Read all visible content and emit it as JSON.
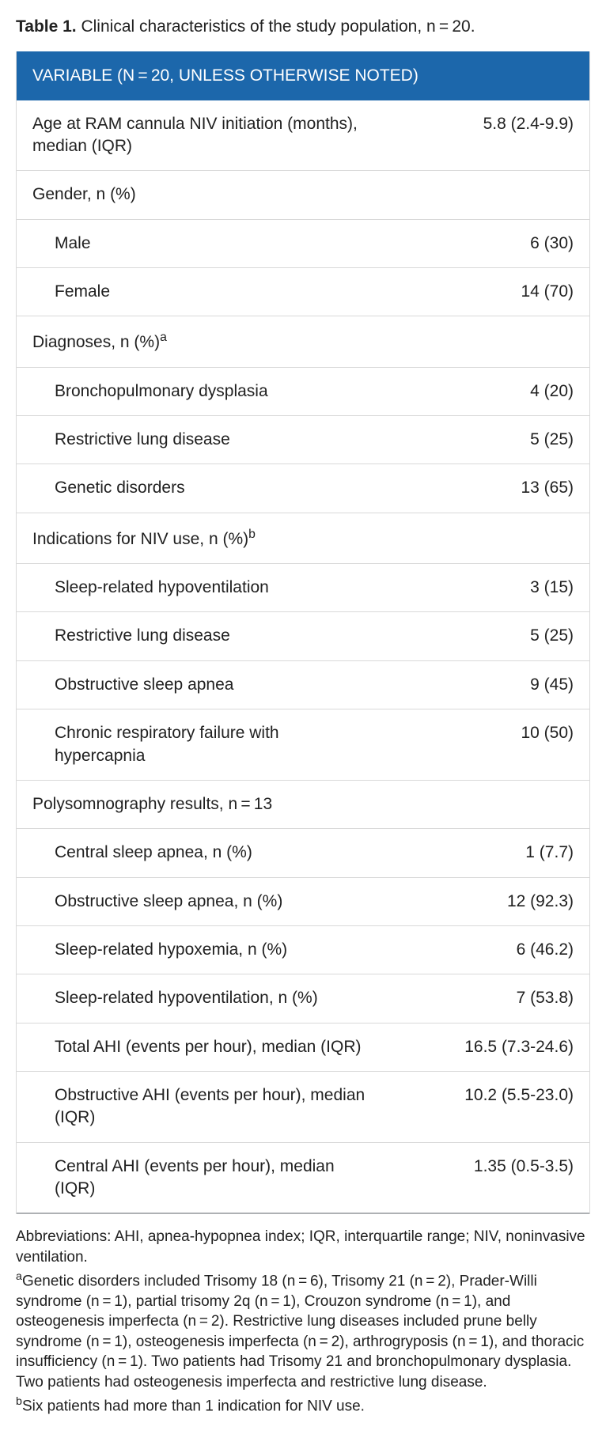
{
  "caption_label": "Table 1.",
  "caption_text": " Clinical characteristics of the study population, n = 20.",
  "header_text": "VARIABLE (N = 20, UNLESS OTHERWISE NOTED)",
  "colors": {
    "header_bg": "#1c67ab",
    "header_text": "#ffffff",
    "row_border": "#d9d9d9",
    "bottom_border": "#aeb1b4",
    "body_text": "#212121"
  },
  "columns": [
    "label",
    "value"
  ],
  "col_widths": [
    "65%",
    "35%"
  ],
  "font_family": "Arial, Helvetica, sans-serif",
  "font_size_caption_pt": 16,
  "font_size_table_pt": 16,
  "font_size_footnote_pt": 14,
  "rows": [
    {
      "label": "Age at RAM cannula NIV initiation (months), median (IQR)",
      "value": "5.8 (2.4-9.9)",
      "indent": false
    },
    {
      "label": "Gender, n (%)",
      "value": "",
      "indent": false
    },
    {
      "label": "Male",
      "value": "6 (30)",
      "indent": true
    },
    {
      "label": "Female",
      "value": "14 (70)",
      "indent": true
    },
    {
      "label": "Diagnoses, n (%)",
      "sup": "a",
      "value": "",
      "indent": false
    },
    {
      "label": "Bronchopulmonary dysplasia",
      "value": "4 (20)",
      "indent": true
    },
    {
      "label": "Restrictive lung disease",
      "value": "5 (25)",
      "indent": true
    },
    {
      "label": "Genetic disorders",
      "value": "13 (65)",
      "indent": true
    },
    {
      "label": "Indications for NIV use, n (%)",
      "sup": "b",
      "value": "",
      "indent": false
    },
    {
      "label": "Sleep-related hypoventilation",
      "value": "3 (15)",
      "indent": true
    },
    {
      "label": "Restrictive lung disease",
      "value": "5 (25)",
      "indent": true
    },
    {
      "label": "Obstructive sleep apnea",
      "value": "9 (45)",
      "indent": true
    },
    {
      "label": "Chronic respiratory failure with hypercapnia",
      "value": "10 (50)",
      "indent": true
    },
    {
      "label": "Polysomnography results, n = 13",
      "value": "",
      "indent": false
    },
    {
      "label": "Central sleep apnea, n (%)",
      "value": "1 (7.7)",
      "indent": true
    },
    {
      "label": "Obstructive sleep apnea, n (%)",
      "value": "12 (92.3)",
      "indent": true
    },
    {
      "label": "Sleep-related hypoxemia, n (%)",
      "value": "6 (46.2)",
      "indent": true
    },
    {
      "label": "Sleep-related hypoventilation, n (%)",
      "value": "7 (53.8)",
      "indent": true
    },
    {
      "label": "Total AHI (events per hour), median (IQR)",
      "value": "16.5 (7.3-24.6)",
      "indent": true
    },
    {
      "label": "Obstructive AHI (events per hour), median (IQR)",
      "value": "10.2 (5.5-23.0)",
      "indent": true
    },
    {
      "label": "Central AHI (events per hour), median (IQR)",
      "value": "1.35 (0.5-3.5)",
      "indent": true
    }
  ],
  "footnotes": {
    "abbrev": "Abbreviations: AHI, apnea-hypopnea index; IQR, interquartile range; NIV, noninvasive ventilation.",
    "note_a_sup": "a",
    "note_a": "Genetic disorders included Trisomy 18 (n = 6), Trisomy 21 (n = 2), Prader-Willi syndrome (n = 1), partial trisomy 2q (n = 1), Crouzon syndrome (n = 1), and osteogenesis imperfecta (n = 2). Restrictive lung diseases included prune belly syndrome (n = 1), osteogenesis imperfecta (n = 2), arthrogryposis (n = 1), and thoracic insufficiency (n = 1). Two patients had Trisomy 21 and bronchopulmonary dysplasia. Two patients had osteogenesis imperfecta and restrictive lung disease.",
    "note_b_sup": "b",
    "note_b": "Six patients had more than 1 indication for NIV use."
  }
}
